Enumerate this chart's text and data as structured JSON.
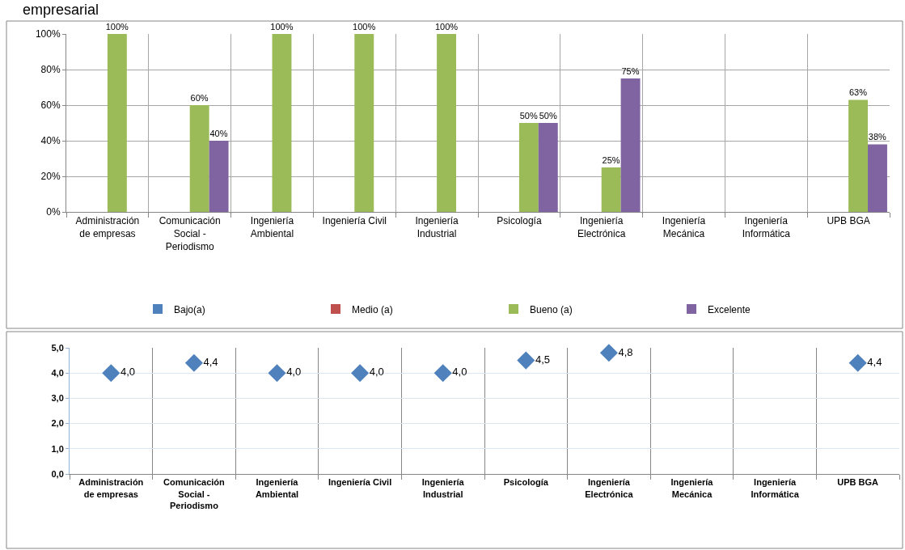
{
  "chart_data": [
    {
      "type": "bar",
      "title": "empresarial",
      "categories": [
        "Administración de empresas",
        "Comunicación Social - Periodismo",
        "Ingeniería Ambiental",
        "Ingeniería Civil",
        "Ingeniería Industrial",
        "Psicología",
        "Ingeniería Electrónica",
        "Ingeniería Mecánica",
        "Ingeniería Informática",
        "UPB BGA"
      ],
      "series": [
        {
          "name": "Bajo(a)",
          "color": "#4f81bd",
          "values": [
            null,
            null,
            null,
            null,
            null,
            null,
            null,
            null,
            null,
            null
          ]
        },
        {
          "name": "Medio (a)",
          "color": "#c0504d",
          "values": [
            null,
            null,
            null,
            null,
            null,
            null,
            null,
            null,
            null,
            null
          ]
        },
        {
          "name": "Bueno (a)",
          "color": "#9bbb59",
          "values": [
            100,
            60,
            100,
            100,
            100,
            50,
            25,
            null,
            null,
            63
          ],
          "value_labels": [
            "100%",
            "60%",
            "100%",
            "100%",
            "100%",
            "50%",
            "25%",
            null,
            null,
            "63%"
          ]
        },
        {
          "name": "Excelente",
          "color": "#8064a2",
          "values": [
            null,
            40,
            null,
            null,
            null,
            50,
            75,
            null,
            null,
            38
          ],
          "value_labels": [
            null,
            "40%",
            null,
            null,
            null,
            "50%",
            "75%",
            null,
            null,
            "38%"
          ]
        }
      ],
      "ylim": [
        0,
        100
      ],
      "yticks": [
        {
          "value": 0,
          "label": "0%"
        },
        {
          "value": 20,
          "label": "20%"
        },
        {
          "value": 40,
          "label": "40%"
        },
        {
          "value": 60,
          "label": "60%"
        },
        {
          "value": 80,
          "label": "80%"
        },
        {
          "value": 100,
          "label": "100%"
        }
      ],
      "grid": true,
      "legend": "bottom"
    },
    {
      "type": "scatter",
      "categories": [
        "Administración de empresas",
        "Comunicación Social - Periodismo",
        "Ingeniería Ambiental",
        "Ingeniería Civil",
        "Ingeniería Industrial",
        "Psicología",
        "Ingeniería Electrónica",
        "Ingeniería Mecánica",
        "Ingeniería Informática",
        "UPB BGA"
      ],
      "series": [
        {
          "color": "#4f81bd",
          "values": [
            4.0,
            4.4,
            4.0,
            4.0,
            4.0,
            4.5,
            4.8,
            null,
            null,
            4.4
          ],
          "value_labels": [
            "4,0",
            "4,4",
            "4,0",
            "4,0",
            "4,0",
            "4,5",
            "4,8",
            null,
            null,
            "4,4"
          ]
        }
      ],
      "ylim": [
        0,
        5
      ],
      "yticks": [
        {
          "value": 0,
          "label": "0,0"
        },
        {
          "value": 1,
          "label": "1,0"
        },
        {
          "value": 2,
          "label": "2,0"
        },
        {
          "value": 3,
          "label": "3,0"
        },
        {
          "value": 4,
          "label": "4,0"
        },
        {
          "value": 5,
          "label": "5,0"
        }
      ],
      "grid": true,
      "marker": "diamond",
      "legend": false
    }
  ]
}
